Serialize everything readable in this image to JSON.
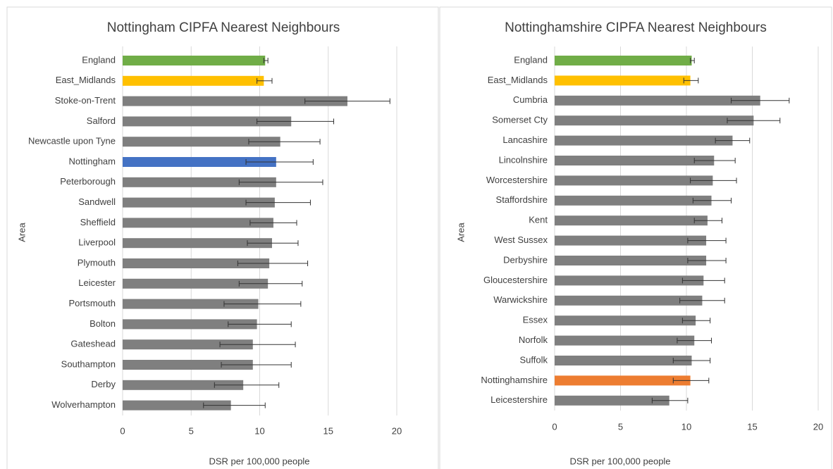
{
  "chart_data": [
    {
      "type": "bar",
      "orientation": "horizontal",
      "title": "Nottingham CIPFA Nearest Neighbours",
      "x_label": "DSR per 100,000 people",
      "y_label": "Area",
      "categories": [
        "England",
        "East_Midlands",
        "Stoke-on-Trent",
        "Salford",
        "Newcastle upon Tyne",
        "Nottingham",
        "Peterborough",
        "Sandwell",
        "Sheffield",
        "Liverpool",
        "Plymouth",
        "Leicester",
        "Portsmouth",
        "Bolton",
        "Gateshead",
        "Southampton",
        "Derby",
        "Wolverhampton"
      ],
      "values": [
        10.4,
        10.3,
        16.4,
        12.3,
        11.5,
        11.2,
        11.2,
        11.1,
        11.0,
        10.9,
        10.7,
        10.6,
        9.9,
        9.8,
        9.5,
        9.5,
        8.8,
        7.9
      ],
      "ci_low": [
        10.3,
        9.8,
        13.3,
        9.8,
        9.2,
        9.0,
        8.5,
        9.0,
        9.3,
        9.1,
        8.4,
        8.5,
        7.4,
        7.7,
        7.1,
        7.2,
        6.7,
        5.9
      ],
      "ci_high": [
        10.6,
        10.9,
        19.5,
        15.4,
        14.4,
        13.9,
        14.6,
        13.7,
        12.7,
        12.8,
        13.5,
        13.1,
        13.0,
        12.3,
        12.6,
        12.3,
        11.4,
        10.4
      ],
      "colors": [
        "#70ad47",
        "#ffc000",
        "#7f7f7f",
        "#7f7f7f",
        "#7f7f7f",
        "#4472c4",
        "#7f7f7f",
        "#7f7f7f",
        "#7f7f7f",
        "#7f7f7f",
        "#7f7f7f",
        "#7f7f7f",
        "#7f7f7f",
        "#7f7f7f",
        "#7f7f7f",
        "#7f7f7f",
        "#7f7f7f",
        "#7f7f7f"
      ],
      "xlim": [
        0,
        20
      ],
      "xticks": [
        0,
        5,
        10,
        15,
        20
      ],
      "grid": true
    },
    {
      "type": "bar",
      "orientation": "horizontal",
      "title": "Nottinghamshire CIPFA Nearest Neighbours",
      "x_label": "DSR per 100,000 people",
      "y_label": "Area",
      "categories": [
        "England",
        "East_Midlands",
        "Cumbria",
        "Somerset Cty",
        "Lancashire",
        "Lincolnshire",
        "Worcestershire",
        "Staffordshire",
        "Kent",
        "West Sussex",
        "Derbyshire",
        "Gloucestershire",
        "Warwickshire",
        "Essex",
        "Norfolk",
        "Suffolk",
        "Nottinghamshire",
        "Leicestershire"
      ],
      "values": [
        10.4,
        10.3,
        15.6,
        15.1,
        13.5,
        12.1,
        12.0,
        11.9,
        11.6,
        11.5,
        11.5,
        11.3,
        11.2,
        10.7,
        10.6,
        10.4,
        10.3,
        8.7
      ],
      "ci_low": [
        10.3,
        9.8,
        13.4,
        13.1,
        12.2,
        10.6,
        10.3,
        10.5,
        10.6,
        10.1,
        10.1,
        9.7,
        9.5,
        9.7,
        9.3,
        9.0,
        9.0,
        7.4
      ],
      "ci_high": [
        10.6,
        10.9,
        17.8,
        17.1,
        14.8,
        13.7,
        13.8,
        13.4,
        12.7,
        13.0,
        13.0,
        12.9,
        12.9,
        11.8,
        11.9,
        11.8,
        11.7,
        10.1
      ],
      "colors": [
        "#70ad47",
        "#ffc000",
        "#7f7f7f",
        "#7f7f7f",
        "#7f7f7f",
        "#7f7f7f",
        "#7f7f7f",
        "#7f7f7f",
        "#7f7f7f",
        "#7f7f7f",
        "#7f7f7f",
        "#7f7f7f",
        "#7f7f7f",
        "#7f7f7f",
        "#7f7f7f",
        "#7f7f7f",
        "#ed7d31",
        "#7f7f7f"
      ],
      "xlim": [
        0,
        20
      ],
      "xticks": [
        0,
        5,
        10,
        15,
        20
      ],
      "grid": true
    }
  ]
}
